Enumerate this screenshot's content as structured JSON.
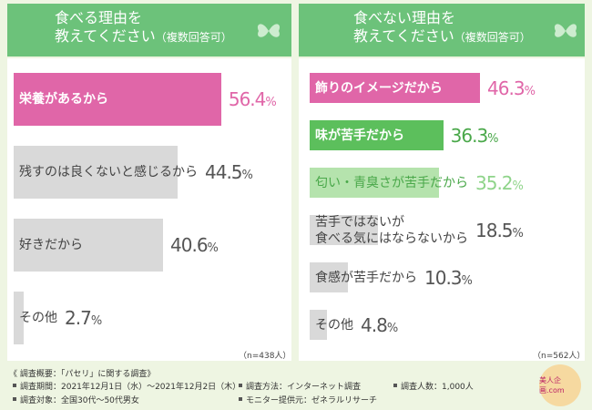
{
  "chart_data": [
    {
      "type": "hbar",
      "title": [
        "食べる理由を",
        "教えてください",
        "（複数回答可）"
      ],
      "note": "（n=438人）",
      "categories": [
        "栄養があるから",
        "残すのは良くないと感じるから",
        "好きだから",
        "その他"
      ],
      "values": [
        56.4,
        44.5,
        40.6,
        2.7
      ],
      "value_labels": [
        "56.4%",
        "44.5%",
        "40.6%",
        "2.7%"
      ],
      "colors": [
        "#e066a8",
        "#d9d9d9",
        "#d9d9d9",
        "#d9d9d9"
      ],
      "label_colors": [
        "#ffffff",
        "#444444",
        "#444444",
        "#444444"
      ],
      "value_colors": [
        "#e066a8",
        "#555555",
        "#555555",
        "#555555"
      ]
    },
    {
      "type": "hbar",
      "title": [
        "食べない理由を",
        "教えてください",
        "（複数回答可）"
      ],
      "note": "（n=562人）",
      "categories": [
        "飾りのイメージだから",
        "味が苦手だから",
        "匂い・青臭さが苦手だから",
        "苦手ではないが\n食べる気にはならないから",
        "食感が苦手だから",
        "その他"
      ],
      "values": [
        46.3,
        36.3,
        35.2,
        18.5,
        10.3,
        4.8
      ],
      "value_labels": [
        "46.3%",
        "36.3%",
        "35.2%",
        "18.5%",
        "10.3%",
        "4.8%"
      ],
      "colors": [
        "#e066a8",
        "#5cbf5c",
        "#b5e3ad",
        "#d9d9d9",
        "#d9d9d9",
        "#d9d9d9"
      ],
      "label_colors": [
        "#ffffff",
        "#ffffff",
        "#4aa84a",
        "#444444",
        "#444444",
        "#444444"
      ],
      "value_colors": [
        "#e066a8",
        "#4aa84a",
        "#8fd48a",
        "#555555",
        "#555555",
        "#555555"
      ]
    }
  ],
  "footer": {
    "heading": "《 調査概要：「パセリ」に関する調査》",
    "items": [
      "調査期間：2021年12月1日（水）〜2021年12月2日（木）",
      "調査方法：インターネット調査",
      "調査人数：1,000人",
      "調査対象：全国30代〜50代男女",
      "モニター提供元：ゼネラルリサーチ"
    ],
    "logo": "美人企画.com"
  }
}
